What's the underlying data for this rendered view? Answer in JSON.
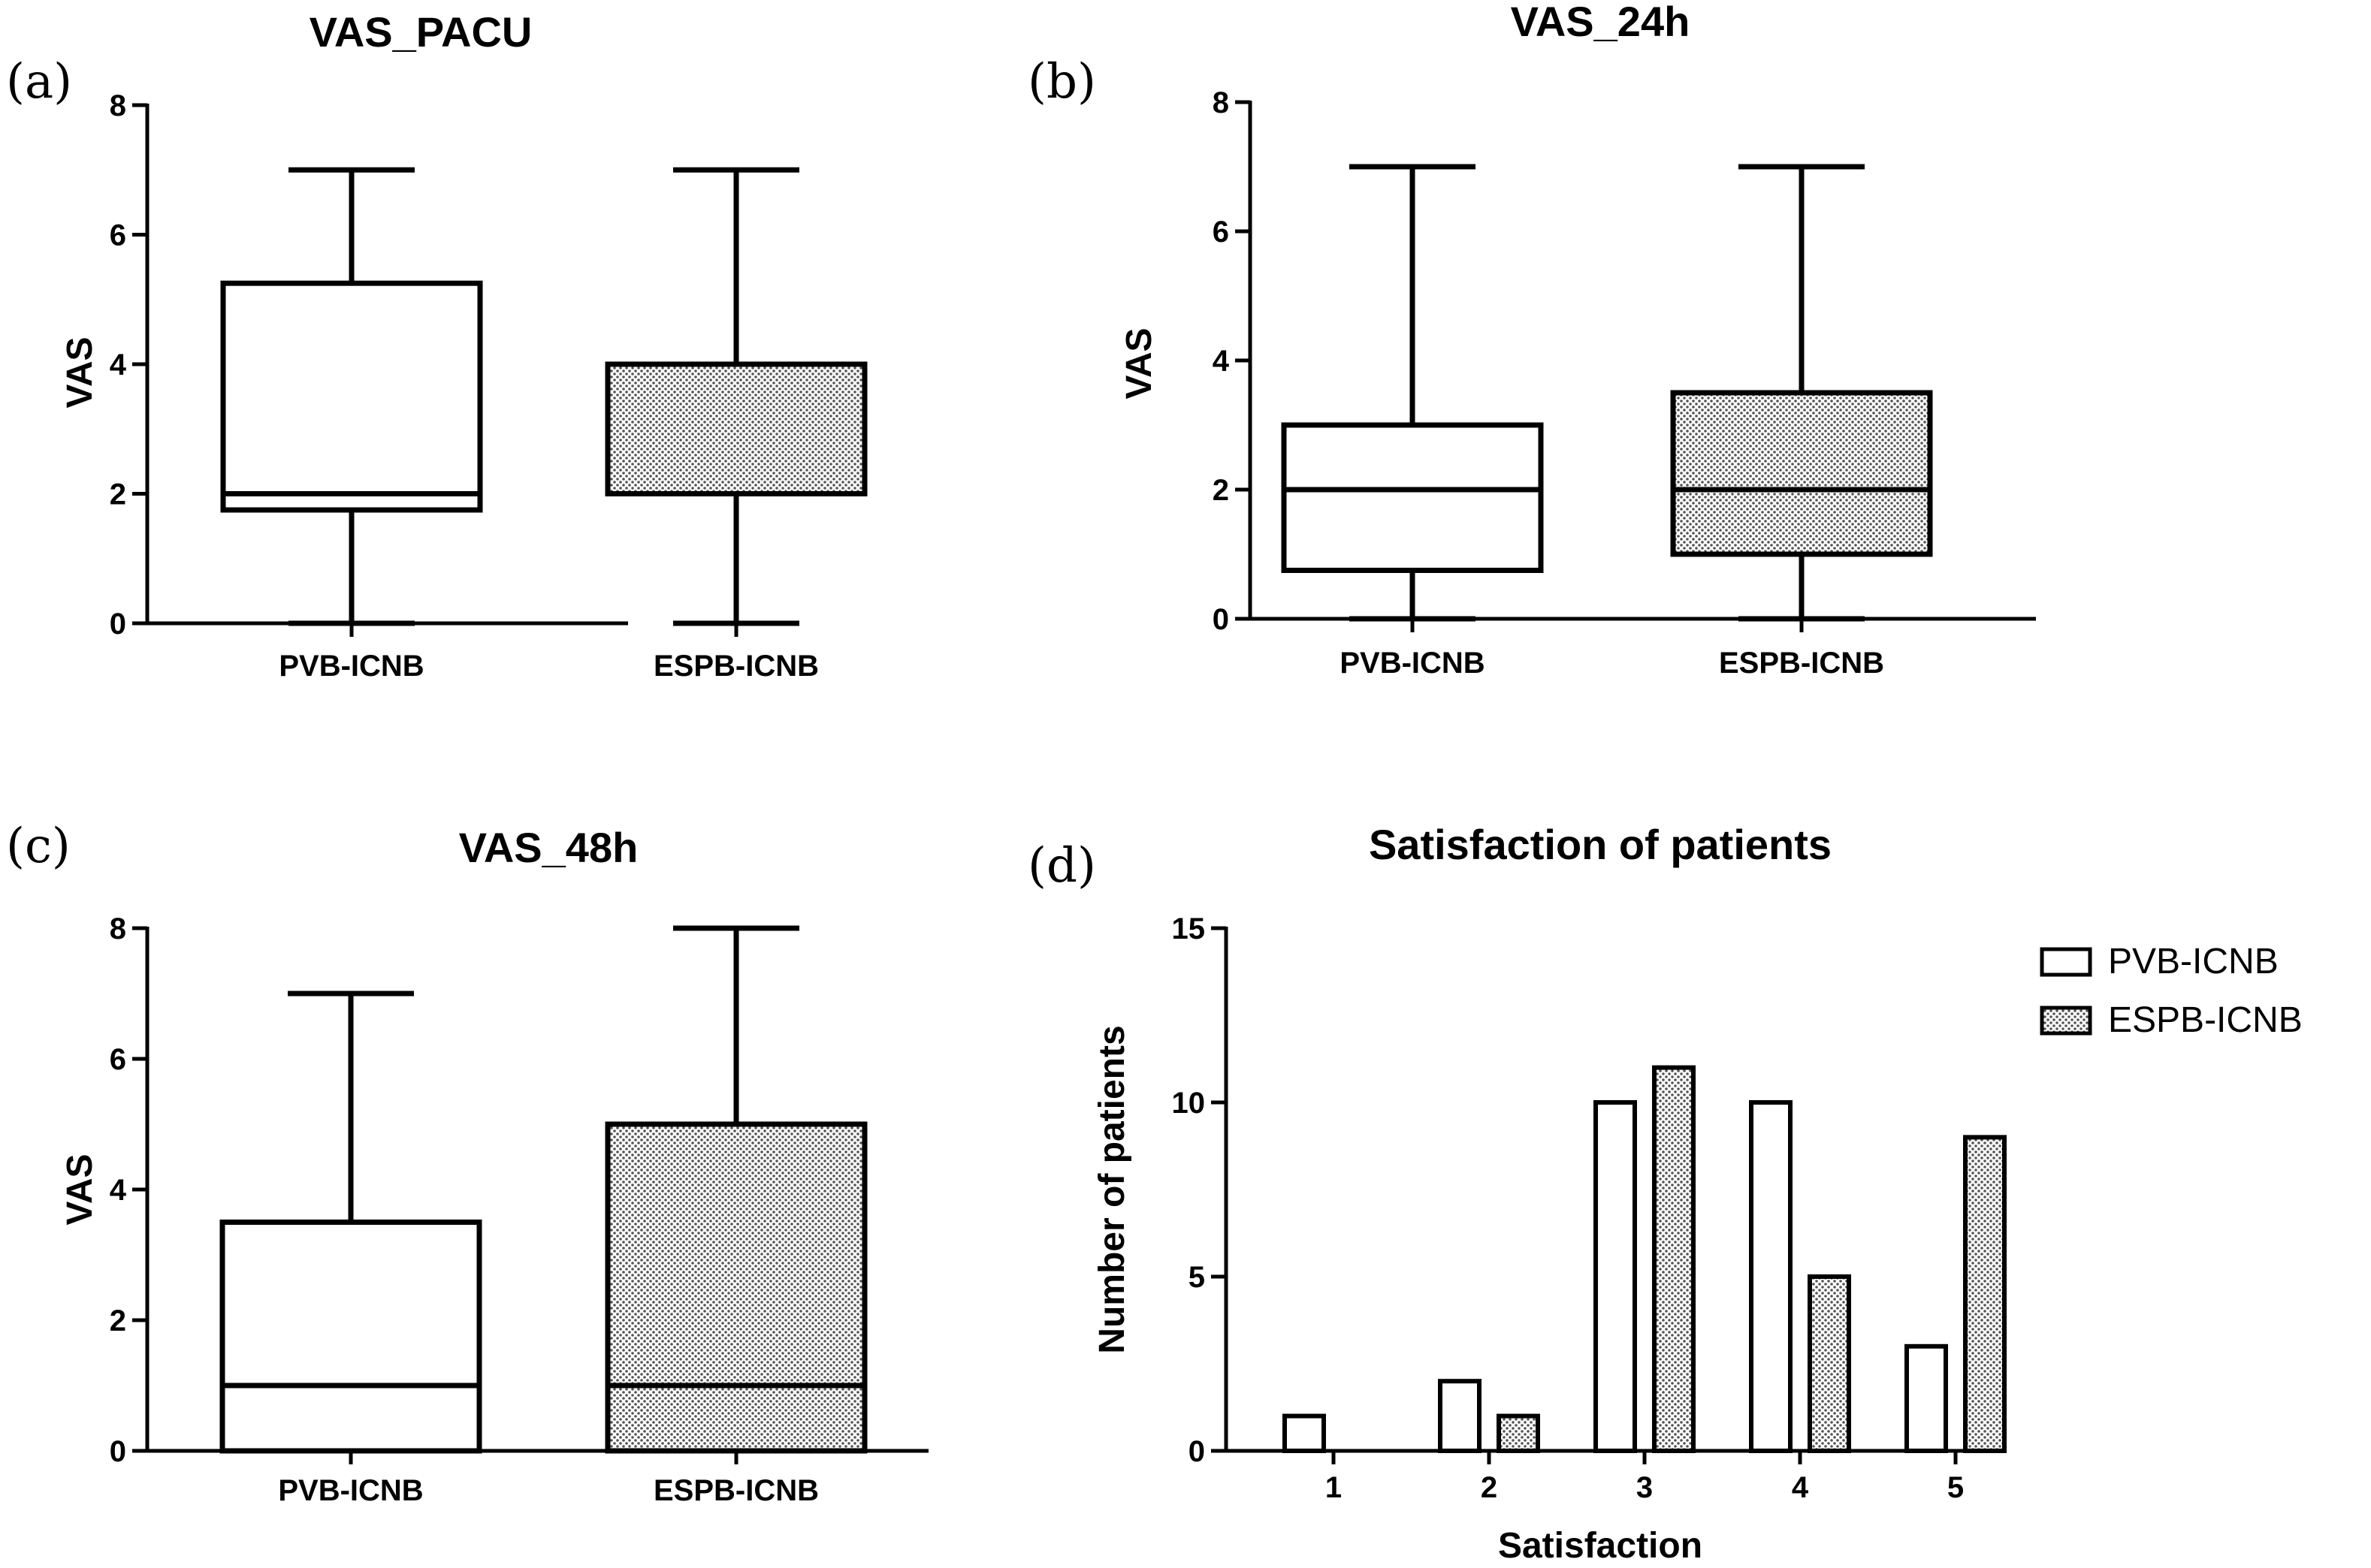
{
  "colors": {
    "stroke": "#000000",
    "open_fill": "#ffffff",
    "hatch_bg": "#ffffff",
    "hatch_dot": "#555555"
  },
  "chart_data": [
    {
      "panel": "(a)",
      "type": "boxplot",
      "title": "VAS_PACU",
      "xlabel": "",
      "ylabel": "VAS",
      "ylim": [
        0,
        8
      ],
      "yticks": [
        0,
        2,
        4,
        6,
        8
      ],
      "categories": [
        "PVB-ICNB",
        "ESPB-ICNB"
      ],
      "boxes": [
        {
          "name": "PVB-ICNB",
          "min": 0,
          "q1": 1.75,
          "median": 2,
          "q3": 5.25,
          "max": 7,
          "fill": "open"
        },
        {
          "name": "ESPB-ICNB",
          "min": 0,
          "q1": 2,
          "median": 2,
          "q3": 4,
          "max": 7,
          "fill": "hatched"
        }
      ]
    },
    {
      "panel": "(b)",
      "type": "boxplot",
      "title": "VAS_24h",
      "xlabel": "",
      "ylabel": "VAS",
      "ylim": [
        0,
        8
      ],
      "yticks": [
        0,
        2,
        4,
        6,
        8
      ],
      "categories": [
        "PVB-ICNB",
        "ESPB-ICNB"
      ],
      "boxes": [
        {
          "name": "PVB-ICNB",
          "min": 0,
          "q1": 0.75,
          "median": 2,
          "q3": 3,
          "max": 7,
          "fill": "open"
        },
        {
          "name": "ESPB-ICNB",
          "min": 0,
          "q1": 1,
          "median": 2,
          "q3": 3.5,
          "max": 7,
          "fill": "hatched"
        }
      ]
    },
    {
      "panel": "(c)",
      "type": "boxplot",
      "title": "VAS_48h",
      "xlabel": "",
      "ylabel": "VAS",
      "ylim": [
        0,
        8
      ],
      "yticks": [
        0,
        2,
        4,
        6,
        8
      ],
      "categories": [
        "PVB-ICNB",
        "ESPB-ICNB"
      ],
      "boxes": [
        {
          "name": "PVB-ICNB",
          "min": 0,
          "q1": 0,
          "median": 1,
          "q3": 3.5,
          "max": 7,
          "fill": "open"
        },
        {
          "name": "ESPB-ICNB",
          "min": 0,
          "q1": 0,
          "median": 1,
          "q3": 5,
          "max": 8,
          "fill": "hatched"
        }
      ]
    },
    {
      "panel": "(d)",
      "type": "bar",
      "title": "Satisfaction of patients",
      "xlabel": "Satisfaction",
      "ylabel": "Number of patients",
      "ylim": [
        0,
        15
      ],
      "yticks": [
        0,
        5,
        10,
        15
      ],
      "categories": [
        "1",
        "2",
        "3",
        "4",
        "5"
      ],
      "series": [
        {
          "name": "PVB-ICNB",
          "values": [
            1,
            2,
            10,
            10,
            3
          ],
          "fill": "open"
        },
        {
          "name": "ESPB-ICNB",
          "values": [
            0,
            1,
            11,
            5,
            9
          ],
          "fill": "hatched"
        }
      ],
      "legend": "top-right"
    }
  ]
}
